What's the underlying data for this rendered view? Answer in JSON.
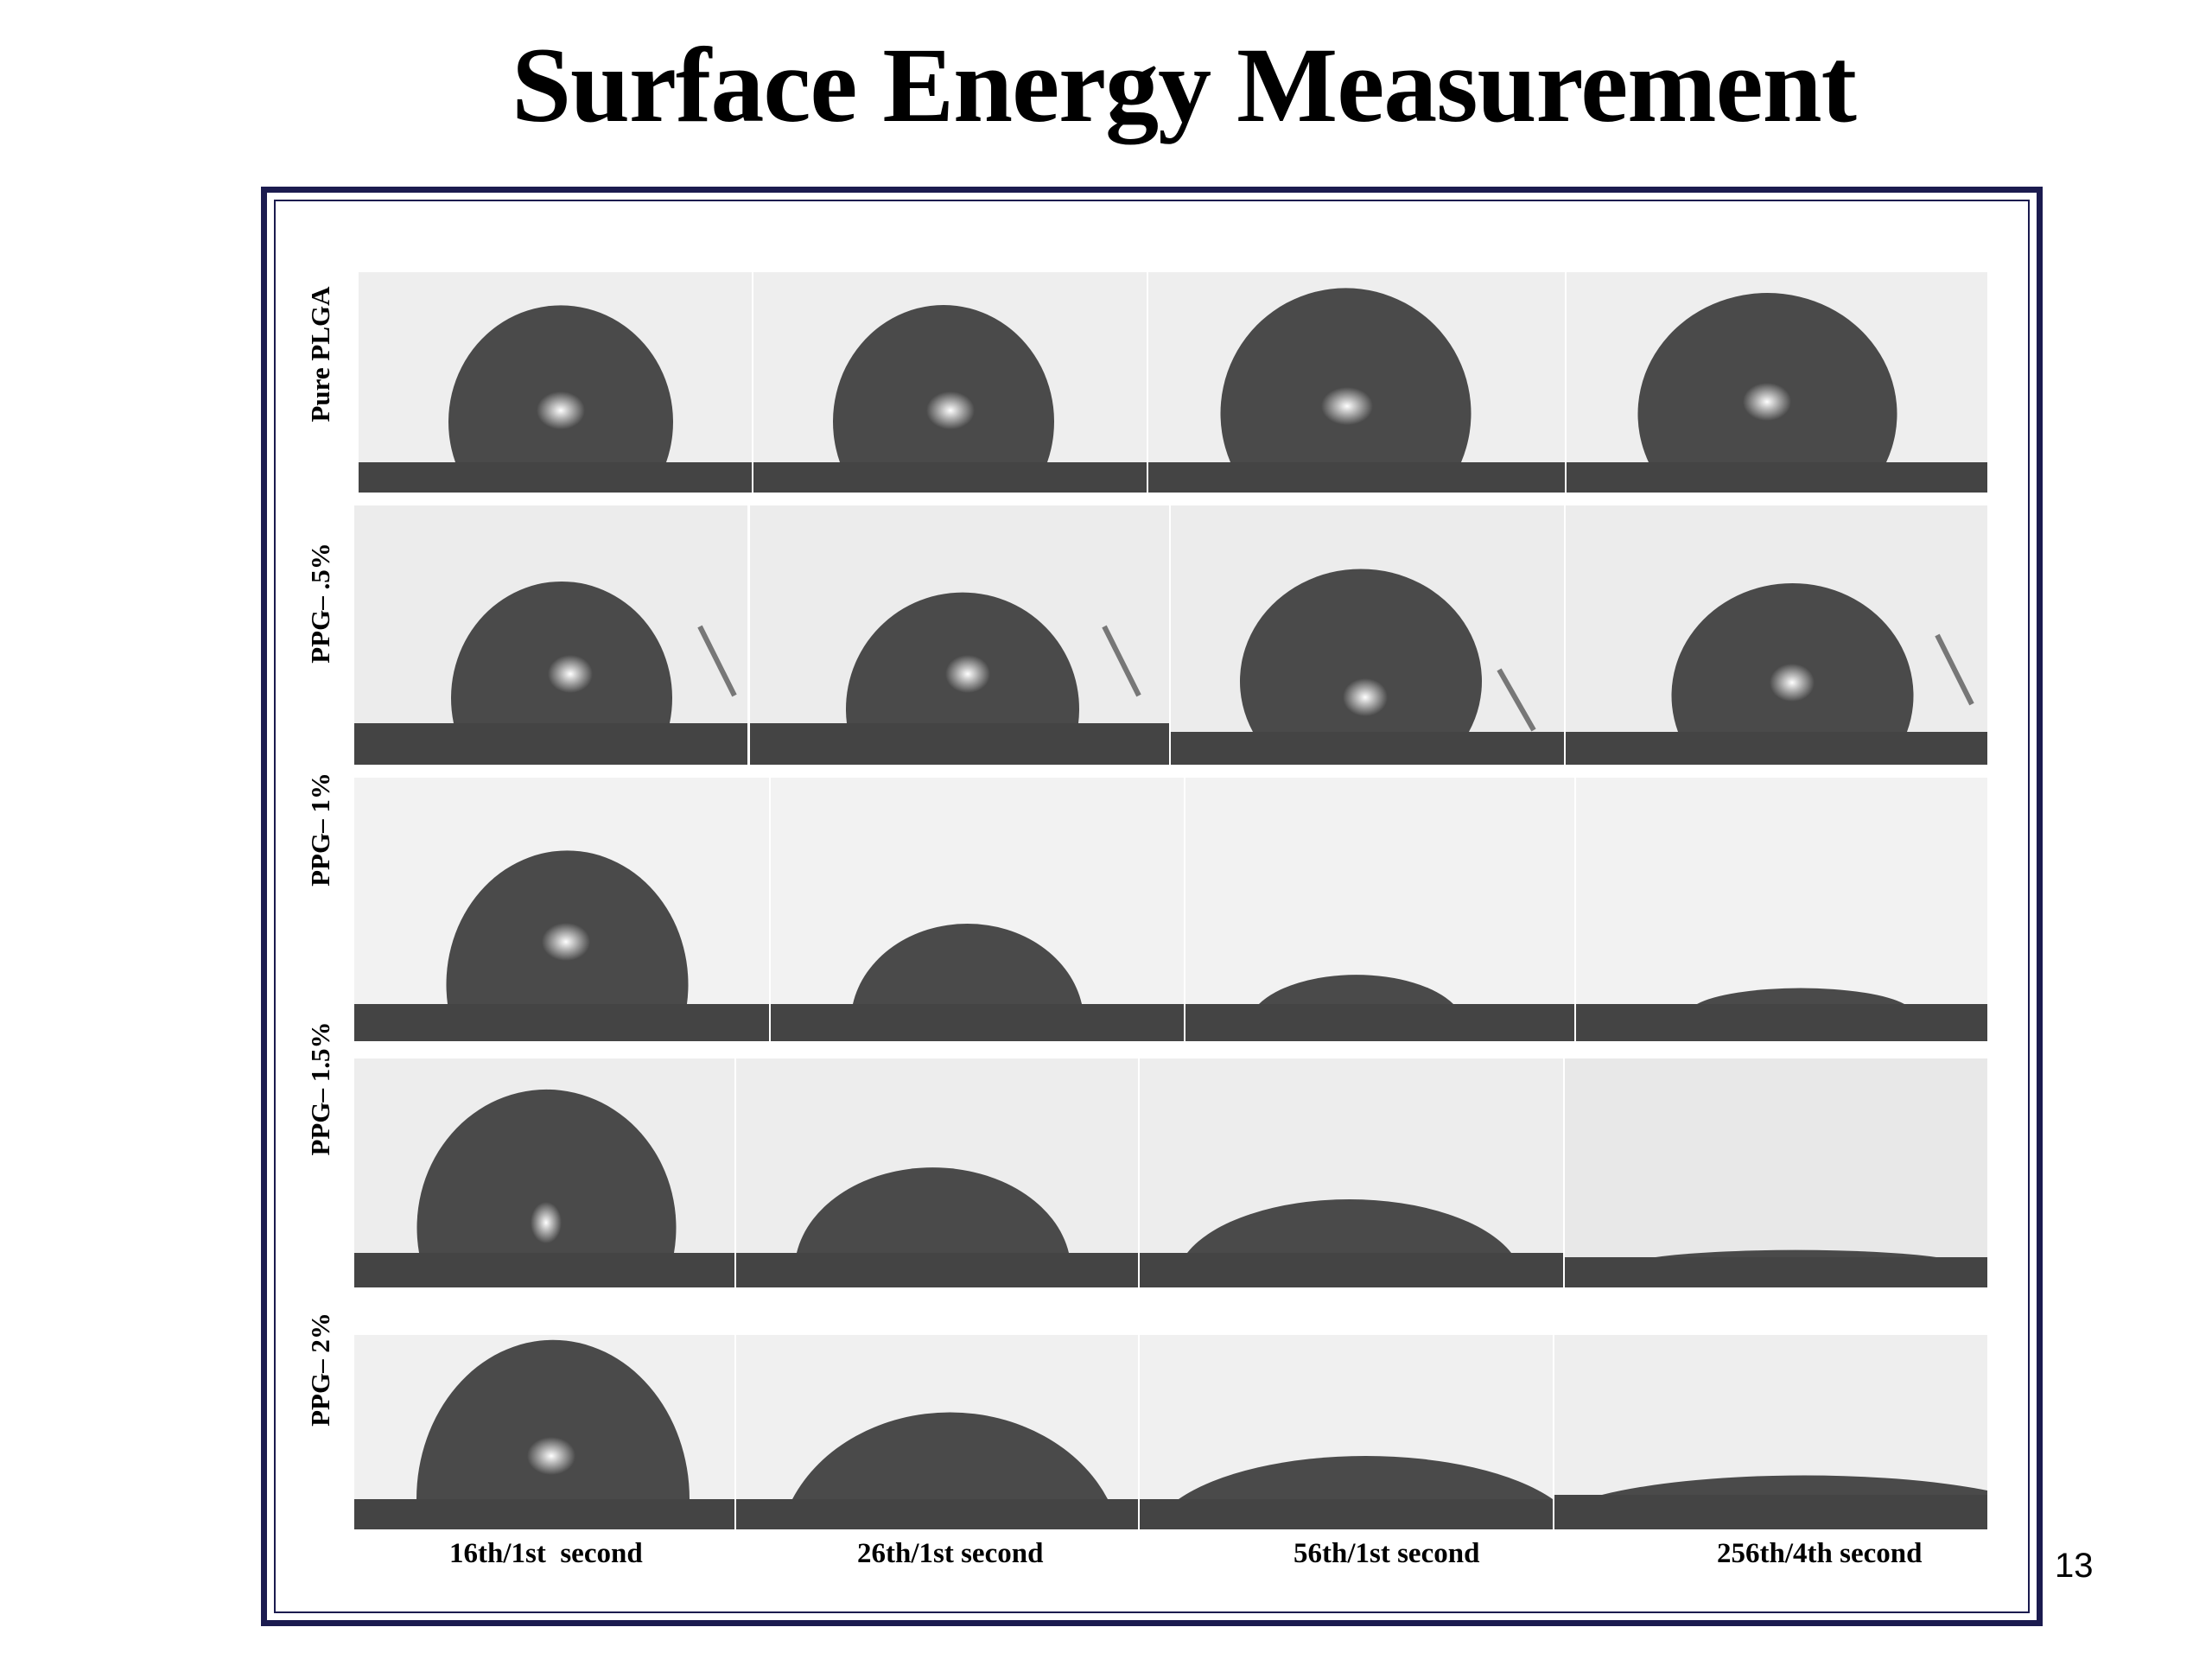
{
  "slide": {
    "title": "Surface Energy Measurement",
    "page_number": "13"
  },
  "figure": {
    "row_labels": [
      "Pure PLGA",
      "PPG– .5%",
      "PPG– 1%",
      "PPG– 1.5%",
      "PPG– 2%"
    ],
    "column_labels": [
      "16th/1st  second",
      "26th/1st second",
      "56th/1st second",
      "256th/4th second"
    ]
  }
}
